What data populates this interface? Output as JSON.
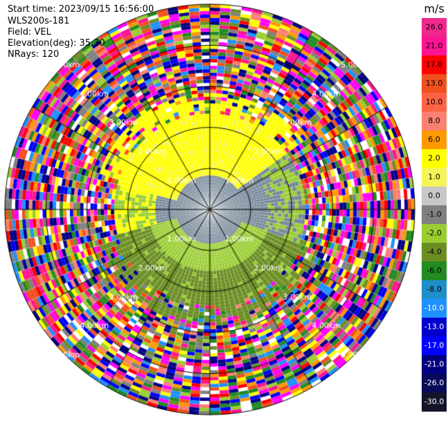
{
  "header": {
    "start_time": "Start time: 2023/09/15 16:56:00",
    "station": "WLS200s-181",
    "field": "Field: VEL",
    "elevation": "Elevation(deg): 35.30",
    "nrays": "NRays: 120"
  },
  "chart_data": {
    "type": "heatmap",
    "projection": "polar-ppi",
    "field": "VEL",
    "unit": "m/s",
    "n_rays": 120,
    "elevation_deg": 35.3,
    "range_ring_labels": [
      "1.00km",
      "2.00km",
      "3.00km",
      "4.00km",
      "5.00km"
    ],
    "range_rings_km": [
      1,
      2,
      3,
      4,
      5
    ],
    "max_range_km": 5.0,
    "colorbar": {
      "label": "m/s",
      "ticks": [
        "26.0",
        "21.0",
        "17.0",
        "13.0",
        "10.0",
        "8.0",
        "6.0",
        "2.0",
        "1.0",
        "0.0",
        "-1.0",
        "-2.0",
        "-4.0",
        "-6.0",
        "-8.0",
        "-10.0",
        "-13.0",
        "-17.0",
        "-21.0",
        "-26.0",
        "-30.0"
      ],
      "colors": [
        "#f0288c",
        "#ff1493",
        "#ff0000",
        "#f0501e",
        "#ff6346",
        "#fa8072",
        "#ff9900",
        "#ffff00",
        "#f5f55a",
        "#c8c8c8",
        "#808080",
        "#9acd32",
        "#6b8e23",
        "#228b22",
        "#1e8fc8",
        "#1e90ff",
        "#0000cd",
        "#0000ff",
        "#000080",
        "#0a0a5a",
        "#141428"
      ]
    },
    "regions": [
      {
        "description": "near zero (grey) core",
        "range_km": [
          0,
          0.9
        ],
        "value": 0.0
      },
      {
        "description": "positive (yellow) band to north",
        "azimuth_deg": [
          280,
          60
        ],
        "range_km": [
          0.5,
          2.3
        ],
        "value": 2.0
      },
      {
        "description": "negative (green) band to south",
        "azimuth_deg": [
          100,
          260
        ],
        "range_km": [
          0.5,
          2.6
        ],
        "value": -2.0
      },
      {
        "description": "noise / random colors beyond",
        "range_km": [
          2.3,
          5.0
        ],
        "value": null
      }
    ]
  }
}
